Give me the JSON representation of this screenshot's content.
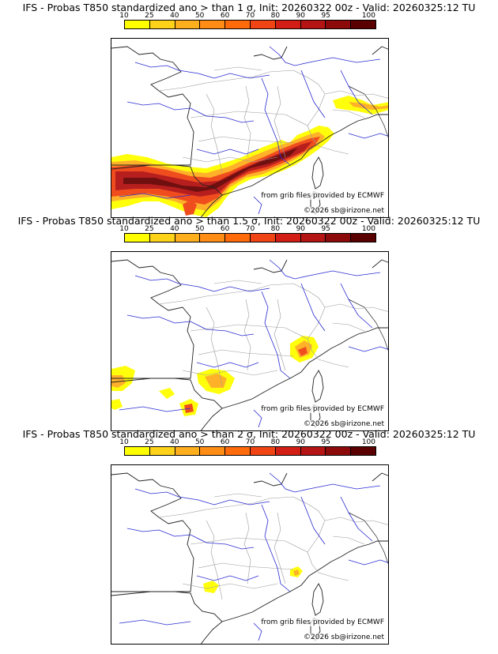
{
  "palette": {
    "bins": [
      "#ffff00",
      "#ffd21a",
      "#ffae1e",
      "#ff8c14",
      "#ff6a0a",
      "#f04414",
      "#d21e14",
      "#b41414",
      "#8c0a0a",
      "#5a0000"
    ],
    "tick_labels": [
      "10",
      "25",
      "40",
      "50",
      "60",
      "70",
      "80",
      "90",
      "95",
      "100"
    ]
  },
  "panels": [
    {
      "title": "IFS - Probas T850  standardized ano > than 1 σ, Init: 20260322 00z - Valid: 20260325:12 TU",
      "credit_source": "from grib files provided by ECMWF",
      "credit_copyright": "©2026 sb@irizone.net"
    },
    {
      "title": "IFS - Probas T850  standardized ano > than 1.5 σ, Init: 20260322 00z - Valid: 20260325:12 TU",
      "credit_source": "from grib files provided by ECMWF",
      "credit_copyright": "©2026 sb@irizone.net"
    },
    {
      "title": "IFS - Probas T850  standardized ano > than 2 σ, Init: 20260322 00z - Valid: 20260325:12 TU",
      "credit_source": "from grib files provided by ECMWF",
      "credit_copyright": "©2026 sb@irizone.net"
    }
  ]
}
